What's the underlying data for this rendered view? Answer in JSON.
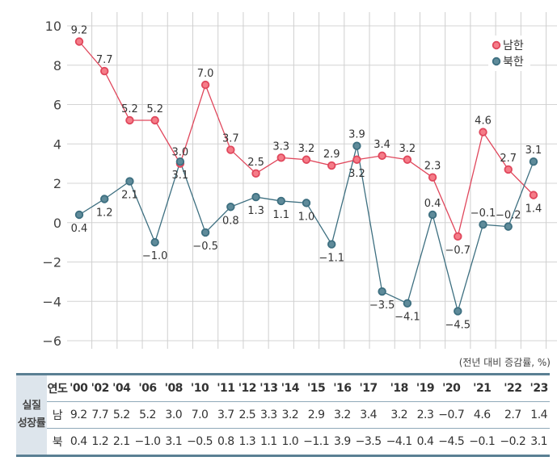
{
  "chart_data": {
    "type": "line",
    "x": [
      "'00",
      "'02",
      "'04",
      "'06",
      "'08",
      "'10",
      "'11",
      "'12",
      "'13",
      "'14",
      "'15",
      "'16",
      "'17",
      "'18",
      "'19",
      "'20",
      "'21",
      "'22",
      "'23"
    ],
    "series": [
      {
        "name": "남한",
        "color": "#e0475c",
        "values": [
          9.2,
          7.7,
          5.2,
          5.2,
          3.0,
          7.0,
          3.7,
          2.5,
          3.3,
          3.2,
          2.9,
          3.2,
          3.4,
          3.2,
          2.3,
          -0.7,
          4.6,
          2.7,
          1.4
        ]
      },
      {
        "name": "북한",
        "color": "#3d6f80",
        "values": [
          0.4,
          1.2,
          2.1,
          -1.0,
          3.1,
          -0.5,
          0.8,
          1.3,
          1.1,
          1.0,
          -1.1,
          3.9,
          -3.5,
          -4.1,
          0.4,
          -4.5,
          -0.1,
          -0.2,
          3.1
        ]
      }
    ],
    "ylim": [
      -6,
      10
    ],
    "yticks": [
      "10",
      "8",
      "6",
      "4",
      "2",
      "0",
      "−2",
      "−4",
      "−6"
    ],
    "ytick_values": [
      10,
      8,
      6,
      4,
      2,
      0,
      -2,
      -4,
      -6
    ],
    "grid": true,
    "legend": "top-right",
    "unit_note": "(전년 대비 증감률, %)"
  },
  "table": {
    "row_group": "실질\n성장률",
    "header_label": "연도",
    "south_label": "남",
    "north_label": "북"
  }
}
